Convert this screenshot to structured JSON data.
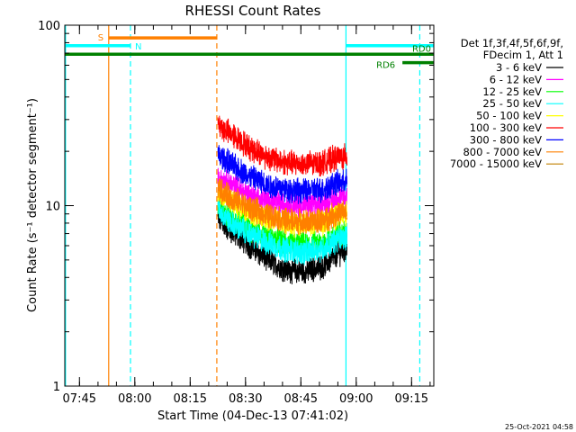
{
  "chart_data": {
    "type": "line",
    "title": "RHESSI Count Rates",
    "xlabel": "Start Time (04-Dec-13 07:41:02)",
    "ylabel": "Count Rate (s⁻¹ detector segment⁻¹)",
    "y_scale": "log",
    "ylim": [
      1,
      100
    ],
    "y_ticks": [
      {
        "value": 1,
        "label": "1"
      },
      {
        "value": 10,
        "label": "10"
      },
      {
        "value": 100,
        "label": "100"
      }
    ],
    "x_unit": "minutes since 07:41:02",
    "xlim": [
      0,
      100
    ],
    "x_ticks": [
      {
        "value": 3.97,
        "label": "07:45"
      },
      {
        "value": 18.97,
        "label": "08:00"
      },
      {
        "value": 33.97,
        "label": "08:15"
      },
      {
        "value": 48.97,
        "label": "08:30"
      },
      {
        "value": 63.97,
        "label": "08:45"
      },
      {
        "value": 78.97,
        "label": "09:00"
      },
      {
        "value": 93.97,
        "label": "09:15"
      }
    ],
    "data_range": [
      41.5,
      76.5
    ],
    "series": [
      {
        "name": "3 - 6 keV",
        "color": "#000000",
        "x": [
          41.5,
          45,
          50,
          55,
          60,
          65,
          70,
          73,
          76.5
        ],
        "values": [
          8.5,
          7.2,
          6.0,
          5.0,
          4.4,
          4.3,
          4.6,
          5.2,
          5.8
        ]
      },
      {
        "name": "6 - 12 keV",
        "color": "#ff00ff",
        "x": [
          41.5,
          45,
          50,
          55,
          60,
          65,
          70,
          73,
          76.5
        ],
        "values": [
          14,
          13,
          11.5,
          10.5,
          10.2,
          10.0,
          10.2,
          10.8,
          11.2
        ]
      },
      {
        "name": "12 - 25 keV",
        "color": "#00ff00",
        "x": [
          41.5,
          45,
          50,
          55,
          60,
          65,
          70,
          73,
          76.5
        ],
        "values": [
          10,
          8.5,
          7.5,
          6.7,
          6.2,
          6.0,
          6.2,
          6.8,
          7.2
        ]
      },
      {
        "name": "25 - 50 keV",
        "color": "#00ffff",
        "x": [
          41.5,
          45,
          50,
          55,
          60,
          65,
          70,
          73,
          76.5
        ],
        "values": [
          9.5,
          8.0,
          7.0,
          6.2,
          5.7,
          5.5,
          5.8,
          6.3,
          6.8
        ]
      },
      {
        "name": "50 - 100 keV",
        "color": "#ffff00",
        "x": [
          41.5,
          45,
          50,
          55,
          60,
          65,
          70,
          73,
          76.5
        ],
        "values": [
          12,
          10.5,
          9.3,
          8.5,
          8.0,
          7.8,
          8.0,
          8.6,
          9.0
        ]
      },
      {
        "name": "100 - 300 keV",
        "color": "#ff0000",
        "x": [
          41.5,
          45,
          50,
          55,
          60,
          65,
          70,
          73,
          76.5
        ],
        "values": [
          28,
          25,
          21,
          18.5,
          17.3,
          17.0,
          17.3,
          18.3,
          18.8
        ]
      },
      {
        "name": "300 - 800 keV",
        "color": "#0000ff",
        "x": [
          41.5,
          45,
          50,
          55,
          60,
          65,
          70,
          73,
          76.5
        ],
        "values": [
          19,
          17,
          14.5,
          13,
          12.3,
          12.0,
          12.3,
          13.2,
          13.6
        ]
      },
      {
        "name": "800 - 7000 keV",
        "color": "#ff8000",
        "x": [
          41.5,
          45,
          50,
          55,
          60,
          65,
          70,
          73,
          76.5
        ],
        "values": [
          12.5,
          11,
          9.7,
          8.8,
          8.3,
          8.1,
          8.3,
          8.9,
          9.3
        ]
      },
      {
        "name": "7000 - 15000 keV",
        "color": "#c08000",
        "x": [],
        "values": []
      }
    ],
    "legend": {
      "position": "top-right",
      "header": [
        "Det 1f,3f,4f,5f,6f,9f,",
        "FDecim 1, Att 1"
      ]
    },
    "annotations": {
      "vlines": [
        {
          "x": 0.2,
          "color": "#00ffff",
          "style": "solid"
        },
        {
          "x": 11.9,
          "color": "#ff8000",
          "style": "solid"
        },
        {
          "x": 17.8,
          "color": "#00ffff",
          "style": "dashed"
        },
        {
          "x": 41.2,
          "color": "#ff8000",
          "style": "dashed"
        },
        {
          "x": 76.2,
          "color": "#00ffff",
          "style": "solid"
        },
        {
          "x": 96.2,
          "color": "#00ffff",
          "style": "dashed"
        }
      ],
      "bars": [
        {
          "label": "S",
          "color": "#ff8000",
          "x0": 11.9,
          "x1": 41.2,
          "y": 85
        },
        {
          "label": "N",
          "color": "#00ffff",
          "x0": 0.2,
          "x1": 17.8,
          "y": 77
        },
        {
          "label": "",
          "color": "#00ffff",
          "x0": 76.2,
          "x1": 100,
          "y": 77
        },
        {
          "label": "",
          "color": "#008000",
          "x0": 0,
          "x1": 100,
          "y": 69
        },
        {
          "label": "RD6",
          "color": "#008000",
          "x0": 91.5,
          "x1": 100,
          "y": 62
        },
        {
          "label": "RD0",
          "color": "#008000",
          "x0": 100,
          "x1": 100,
          "y": 69
        }
      ]
    },
    "timestamp": "25-Oct-2021 04:58"
  }
}
